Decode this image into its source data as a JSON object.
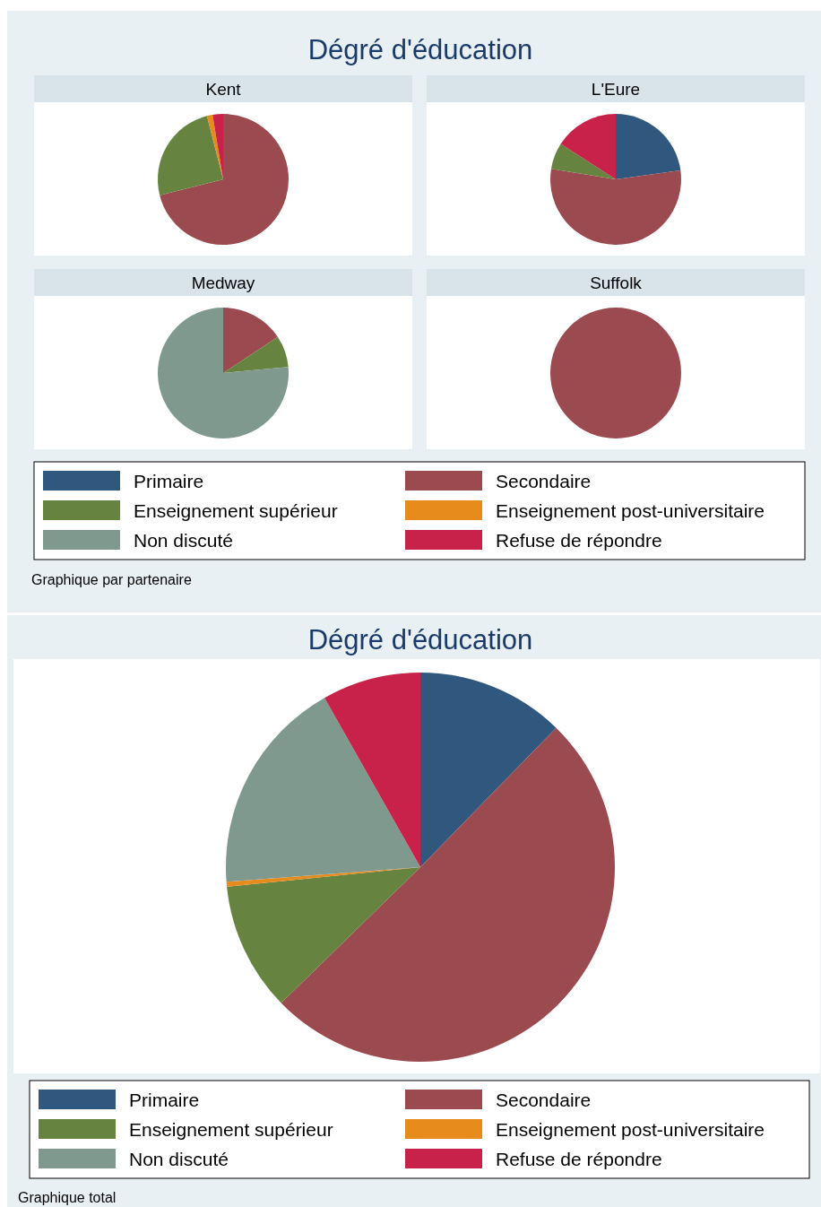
{
  "chart_data": [
    {
      "type": "pie",
      "title": "Dégré d'éducation",
      "legend": "bottom",
      "annotations": [
        "Graphique par partenaire"
      ],
      "categories": [
        "Primaire",
        "Secondaire",
        "Enseignement supérieur",
        "Enseignement post-universitaire",
        "Non discuté",
        "Refuse de répondre"
      ],
      "colors": [
        "#30587e",
        "#9b4a50",
        "#66843f",
        "#e88b1d",
        "#80998f",
        "#c8214a"
      ],
      "series": [
        {
          "name": "Kent",
          "values": [
            0,
            71.1,
            24.9,
            1.4,
            0,
            2.6
          ]
        },
        {
          "name": "L'Eure",
          "values": [
            22.8,
            54.8,
            6.5,
            0,
            0,
            15.9
          ]
        },
        {
          "name": "Medway",
          "values": [
            0,
            15.7,
            7.8,
            0,
            76.5,
            0
          ]
        },
        {
          "name": "Suffolk",
          "values": [
            0,
            100,
            0,
            0,
            0,
            0
          ]
        }
      ]
    },
    {
      "type": "pie",
      "title": "Dégré d'éducation",
      "legend": "bottom",
      "annotations": [
        "Graphique total"
      ],
      "categories": [
        "Primaire",
        "Secondaire",
        "Enseignement supérieur",
        "Enseignement post-universitaire",
        "Non discuté",
        "Refuse de répondre"
      ],
      "values": [
        12.3,
        50.4,
        10.7,
        0.4,
        18.0,
        8.2
      ],
      "colors": [
        "#30587e",
        "#9b4a50",
        "#66843f",
        "#e88b1d",
        "#80998f",
        "#c8214a"
      ]
    }
  ]
}
